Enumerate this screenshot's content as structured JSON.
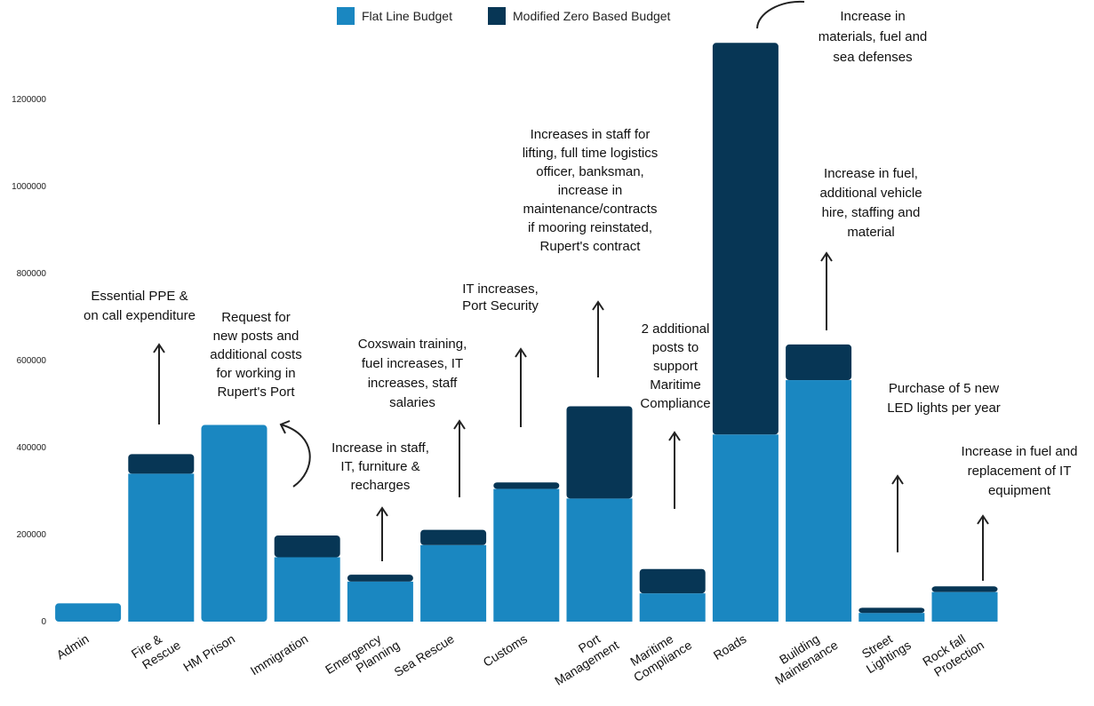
{
  "chart_data": {
    "type": "bar",
    "stacked": true,
    "categories": [
      "Admin",
      "Fire &\nRescue",
      "HM Prison",
      "Immigration",
      "Emergency\nPlanning",
      "Sea Rescue",
      "Customs",
      "Port\nManagement",
      "Maritime\nCompliance",
      "Roads",
      "Building\nMaintenance",
      "Street\nLightings",
      "Rock fall\nProtection"
    ],
    "series": [
      {
        "name": "Flat Line Budget",
        "color": "#1a87c1",
        "values": [
          42000,
          340000,
          452000,
          148000,
          92000,
          176000,
          305000,
          283000,
          65000,
          430000,
          555000,
          20000,
          68000
        ]
      },
      {
        "name": "Modified Zero Based Budget",
        "color": "#073655",
        "values": [
          0,
          45000,
          0,
          50000,
          16000,
          35000,
          15000,
          212000,
          56000,
          900000,
          82000,
          12000,
          13000
        ]
      }
    ],
    "yticks": [
      "0",
      "200000",
      "400000",
      "600000",
      "800000",
      "1000000",
      "1200000"
    ],
    "ylim": [
      0,
      1400000
    ],
    "legend_position": "top",
    "annotations": [
      {
        "category": "Fire &\nRescue",
        "lines": [
          "Essential PPE &",
          "on call expenditure"
        ]
      },
      {
        "category": "HM Prison",
        "lines": [
          "Request for",
          "new posts and",
          "additional costs",
          "for working in",
          "Rupert's Port"
        ]
      },
      {
        "category": "Emergency\nPlanning",
        "lines": [
          "Increase in staff,",
          "IT, furniture &",
          "recharges"
        ]
      },
      {
        "category": "Sea Rescue",
        "lines": [
          "Coxswain training,",
          "fuel increases, IT",
          "increases, staff",
          "salaries"
        ]
      },
      {
        "category": "Customs",
        "lines": [
          "IT increases,",
          "Port Security"
        ]
      },
      {
        "category": "Port\nManagement",
        "lines": [
          "Increases in staff for",
          "lifting, full time logistics",
          "officer, banksman,",
          "increase in",
          "maintenance/contracts",
          "if mooring reinstated,",
          "Rupert's contract"
        ]
      },
      {
        "category": "Maritime\nCompliance",
        "lines": [
          "2 additional",
          "posts to",
          "support",
          "Maritime",
          "Compliance"
        ]
      },
      {
        "category": "Roads",
        "lines": [
          "Increase in",
          "materials, fuel and",
          "sea defenses"
        ]
      },
      {
        "category": "Building\nMaintenance",
        "lines": [
          "Increase in fuel,",
          "additional vehicle",
          "hire, staffing and",
          "material"
        ]
      },
      {
        "category": "Street\nLightings",
        "lines": [
          "Purchase of 5 new",
          "LED lights per year"
        ]
      },
      {
        "category": "Rock fall\nProtection",
        "lines": [
          "Increase in fuel and",
          "replacement of IT",
          "equipment"
        ]
      }
    ]
  }
}
